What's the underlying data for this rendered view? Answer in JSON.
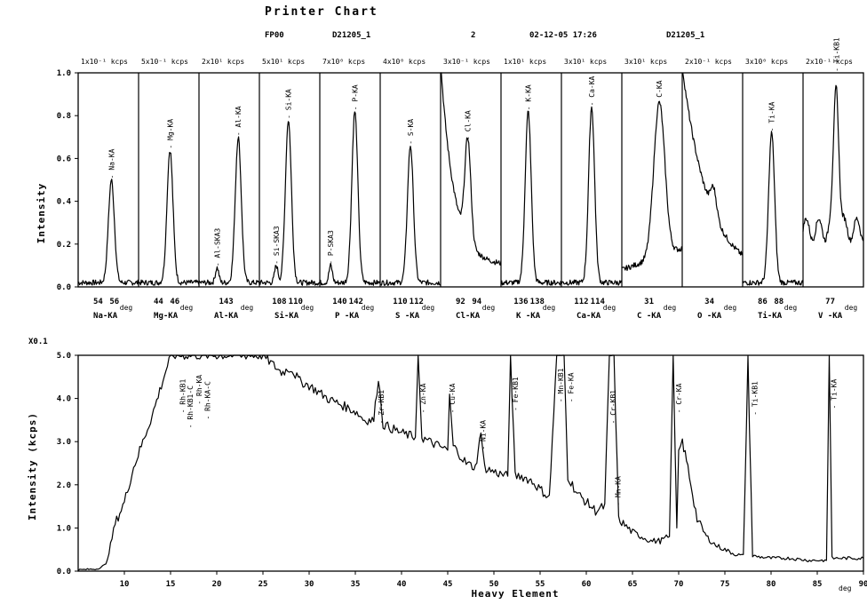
{
  "header": {
    "title": "Printer Chart",
    "program": "FP00",
    "sample_id": "D21205_1",
    "channel": "2",
    "datetime": "02-12-05 17:26",
    "sample_id_2": "D21205_1"
  },
  "top_chart": {
    "ylabel": "Intensity",
    "ylim": [
      0,
      1.0
    ],
    "yticks": [
      "0.0",
      "0.2",
      "0.4",
      "0.6",
      "0.8",
      "1.0"
    ],
    "deg_label": "deg",
    "panels": [
      {
        "scale": "1x10⁻¹ kcps",
        "element": "Na-KA",
        "ticks": [
          "54",
          "56"
        ],
        "peak_label": "Na-KA",
        "peak_x": 0.55,
        "peak_y": 0.48,
        "shape": "peak"
      },
      {
        "scale": "5x10⁻¹ kcps",
        "element": "Mg-KA",
        "ticks": [
          "44",
          "46"
        ],
        "peak_label": "Mg-KA",
        "peak_x": 0.52,
        "peak_y": 0.62,
        "shape": "peak"
      },
      {
        "scale": "2x10¹ kcps",
        "element": "Al-KA",
        "ticks": [
          "143"
        ],
        "peak_label": "Al-KA",
        "peak_x": 0.65,
        "peak_y": 0.68,
        "minor_label": "Al-SKA3",
        "minor_x": 0.3,
        "minor_y": 0.07,
        "shape": "peak"
      },
      {
        "scale": "5x10¹ kcps",
        "element": "Si-KA",
        "ticks": [
          "108",
          "110"
        ],
        "peak_label": "Si-KA",
        "peak_x": 0.48,
        "peak_y": 0.76,
        "minor_label": "Si-SKA3",
        "minor_x": 0.28,
        "minor_y": 0.08,
        "shape": "peak"
      },
      {
        "scale": "7x10⁰ kcps",
        "element": "P -KA",
        "ticks": [
          "140",
          "142"
        ],
        "peak_label": "P-KA",
        "peak_x": 0.58,
        "peak_y": 0.8,
        "minor_label": "P-SKA3",
        "minor_x": 0.18,
        "minor_y": 0.08,
        "shape": "peak"
      },
      {
        "scale": "4x10⁰ kcps",
        "element": "S -KA",
        "ticks": [
          "110",
          "112"
        ],
        "peak_label": "S-KA",
        "peak_x": 0.5,
        "peak_y": 0.64,
        "shape": "peak"
      },
      {
        "scale": "3x10⁻¹ kcps",
        "element": "Cl-KA",
        "ticks": [
          "92",
          "94"
        ],
        "peak_label": "Cl-KA",
        "peak_x": 0.45,
        "peak_y": 0.66,
        "shape": "decay"
      },
      {
        "scale": "1x10¹ kcps",
        "element": "K -KA",
        "ticks": [
          "136",
          "138"
        ],
        "peak_label": "K-KA",
        "peak_x": 0.45,
        "peak_y": 0.8,
        "shape": "peak"
      },
      {
        "scale": "3x10¹ kcps",
        "element": "Ca-KA",
        "ticks": [
          "112",
          "114"
        ],
        "peak_label": "Ca-KA",
        "peak_x": 0.5,
        "peak_y": 0.82,
        "shape": "peak"
      },
      {
        "scale": "3x10¹ kcps",
        "element": "C -KA",
        "ticks": [
          "31"
        ],
        "peak_label": "C-KA",
        "peak_x": 0.62,
        "peak_y": 0.82,
        "shape": "broad"
      },
      {
        "scale": "2x10⁻¹ kcps",
        "element": "O -KA",
        "ticks": [
          "34"
        ],
        "peak_label": "",
        "peak_x": 0.52,
        "peak_y": 0.67,
        "shape": "o"
      },
      {
        "scale": "3x10⁰ kcps",
        "element": "Ti-KA",
        "ticks": [
          "86",
          "88"
        ],
        "peak_label": "Ti-KA",
        "peak_x": 0.48,
        "peak_y": 0.7,
        "shape": "peak"
      },
      {
        "scale": "2x10⁻¹ kcps",
        "element": "V -KA",
        "ticks": [
          "77"
        ],
        "peak_label": "Ti-KB1",
        "peak_x": 0.55,
        "peak_y": 0.98,
        "shape": "v"
      }
    ]
  },
  "chart_data": {
    "type": "line",
    "multiplier": "X0.1",
    "xlabel": "Heavy Element",
    "ylabel": "Intensity (kcps)",
    "x_unit": "deg",
    "xlim": [
      5,
      90
    ],
    "ylim": [
      0,
      5.0
    ],
    "xticks": [
      10,
      15,
      20,
      25,
      30,
      35,
      40,
      45,
      50,
      55,
      60,
      65,
      70,
      75,
      80,
      85,
      90
    ],
    "yticks": [
      "0.0",
      "1.0",
      "2.0",
      "3.0",
      "4.0",
      "5.0"
    ],
    "series": [
      {
        "values": [
          [
            5,
            0.03
          ],
          [
            7,
            0.05
          ],
          [
            8,
            0.15
          ],
          [
            8.5,
            0.6
          ],
          [
            9,
            1.1
          ],
          [
            10,
            1.6
          ],
          [
            11,
            2.4
          ],
          [
            12,
            3.0
          ],
          [
            13,
            3.6
          ],
          [
            14,
            4.3
          ],
          [
            15,
            5.0
          ],
          [
            24,
            5.0
          ],
          [
            25,
            5.0
          ],
          [
            26,
            4.8
          ],
          [
            27,
            4.6
          ],
          [
            28,
            4.7
          ],
          [
            29,
            4.4
          ],
          [
            30,
            4.3
          ],
          [
            32,
            4.0
          ],
          [
            34,
            3.8
          ],
          [
            35,
            3.7
          ],
          [
            36,
            3.5
          ],
          [
            37,
            3.5
          ],
          [
            37.5,
            4.5
          ],
          [
            38,
            3.4
          ],
          [
            40,
            3.2
          ],
          [
            41.5,
            3.1
          ],
          [
            41.8,
            5.0
          ],
          [
            42.2,
            3.1
          ],
          [
            43,
            3.0
          ],
          [
            45,
            2.8
          ],
          [
            45.2,
            4.1
          ],
          [
            45.6,
            2.9
          ],
          [
            47,
            2.5
          ],
          [
            48,
            2.4
          ],
          [
            48.6,
            3.2
          ],
          [
            49,
            2.4
          ],
          [
            50,
            2.3
          ],
          [
            51.5,
            2.2
          ],
          [
            51.8,
            5.0
          ],
          [
            52.3,
            2.2
          ],
          [
            53,
            2.2
          ],
          [
            54,
            2.1
          ],
          [
            55,
            1.9
          ],
          [
            56,
            1.7
          ],
          [
            56.8,
            5.0
          ],
          [
            57.6,
            5.0
          ],
          [
            58,
            2.2
          ],
          [
            59,
            1.8
          ],
          [
            60,
            1.6
          ],
          [
            61,
            1.4
          ],
          [
            62,
            1.5
          ],
          [
            62.5,
            5.0
          ],
          [
            63,
            5.0
          ],
          [
            63.5,
            1.2
          ],
          [
            64,
            1.1
          ],
          [
            65,
            0.9
          ],
          [
            66,
            0.8
          ],
          [
            67,
            0.7
          ],
          [
            68,
            0.7
          ],
          [
            69,
            0.8
          ],
          [
            69.4,
            5.0
          ],
          [
            69.8,
            1.0
          ],
          [
            70,
            2.8
          ],
          [
            70.4,
            3.0
          ],
          [
            71,
            2.4
          ],
          [
            72,
            1.2
          ],
          [
            73,
            0.8
          ],
          [
            74,
            0.6
          ],
          [
            75,
            0.5
          ],
          [
            76,
            0.4
          ],
          [
            77,
            0.35
          ],
          [
            77.5,
            4.9
          ],
          [
            78,
            0.35
          ],
          [
            80,
            0.3
          ],
          [
            82,
            0.3
          ],
          [
            84,
            0.25
          ],
          [
            86,
            0.25
          ],
          [
            86.3,
            5.0
          ],
          [
            86.6,
            0.3
          ],
          [
            88,
            0.3
          ],
          [
            90,
            0.3
          ]
        ]
      }
    ],
    "annotations": [
      {
        "text": "Rh-KB1",
        "x": 16.3,
        "y": 4.45
      },
      {
        "text": "Rh-KB1-C",
        "x": 17.1,
        "y": 4.3
      },
      {
        "text": "Rh-KA",
        "x": 18.1,
        "y": 4.55
      },
      {
        "text": "Rh-KA-C",
        "x": 19.0,
        "y": 4.4
      },
      {
        "text": "Zr-KB1",
        "x": 37.8,
        "y": 4.2
      },
      {
        "text": "Zn-KA",
        "x": 42.3,
        "y": 4.35
      },
      {
        "text": "Cu-KA",
        "x": 45.5,
        "y": 4.35
      },
      {
        "text": "Ni-KA",
        "x": 48.8,
        "y": 3.5
      },
      {
        "text": "Fe-KB1",
        "x": 52.3,
        "y": 4.5
      },
      {
        "text": "Mn-KB1",
        "x": 57.2,
        "y": 4.7
      },
      {
        "text": "Fe-KA",
        "x": 58.3,
        "y": 4.6
      },
      {
        "text": "Cr-KB1",
        "x": 62.9,
        "y": 4.2
      },
      {
        "text": "Mn-KA",
        "x": 63.4,
        "y": 2.2
      },
      {
        "text": "Cr-KA",
        "x": 70.0,
        "y": 4.35
      },
      {
        "text": "Ti-KB1",
        "x": 78.2,
        "y": 4.4
      },
      {
        "text": "Ti-KA",
        "x": 86.8,
        "y": 4.45
      }
    ]
  }
}
